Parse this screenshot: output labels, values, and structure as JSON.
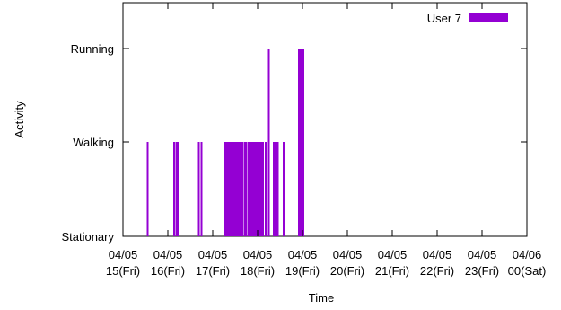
{
  "chart_data": {
    "type": "bar",
    "title": "",
    "xlabel": "Time",
    "ylabel": "Activity",
    "y_categories": [
      "Stationary",
      "Walking",
      "Running"
    ],
    "x_tick_labels": [
      [
        "04/05",
        "15(Fri)"
      ],
      [
        "04/05",
        "16(Fri)"
      ],
      [
        "04/05",
        "17(Fri)"
      ],
      [
        "04/05",
        "18(Fri)"
      ],
      [
        "04/05",
        "19(Fri)"
      ],
      [
        "04/05",
        "20(Fri)"
      ],
      [
        "04/05",
        "21(Fri)"
      ],
      [
        "04/05",
        "22(Fri)"
      ],
      [
        "04/05",
        "23(Fri)"
      ],
      [
        "04/06",
        "00(Sat)"
      ]
    ],
    "xlim_hours": [
      15,
      24
    ],
    "legend_position": "top-right",
    "grid": false,
    "series": [
      {
        "name": "User 7",
        "color": "#9400d3",
        "x_hours": [
          15.55,
          16.14,
          16.19,
          16.22,
          16.69,
          16.75,
          17.27,
          17.29,
          17.31,
          17.33,
          17.37,
          17.39,
          17.42,
          17.44,
          17.47,
          17.49,
          17.52,
          17.54,
          17.57,
          17.59,
          17.62,
          17.66,
          17.71,
          17.75,
          17.8,
          17.82,
          17.85,
          17.89,
          17.93,
          17.95,
          17.98,
          18.0,
          18.03,
          18.06,
          18.09,
          18.12,
          18.18,
          18.25,
          18.36,
          18.39,
          18.42,
          18.45,
          18.58,
          18.92,
          18.95,
          18.98,
          19.0,
          19.02
        ],
        "y_values": [
          1,
          1,
          1,
          1,
          1,
          1,
          1,
          1,
          1,
          1,
          1,
          1,
          1,
          1,
          1,
          1,
          1,
          1,
          1,
          1,
          1,
          1,
          1,
          1,
          1,
          1,
          1,
          1,
          1,
          1,
          1,
          1,
          1,
          1,
          1,
          1,
          1,
          2,
          1,
          1,
          1,
          1,
          1,
          2,
          2,
          2,
          2,
          2
        ]
      }
    ]
  }
}
